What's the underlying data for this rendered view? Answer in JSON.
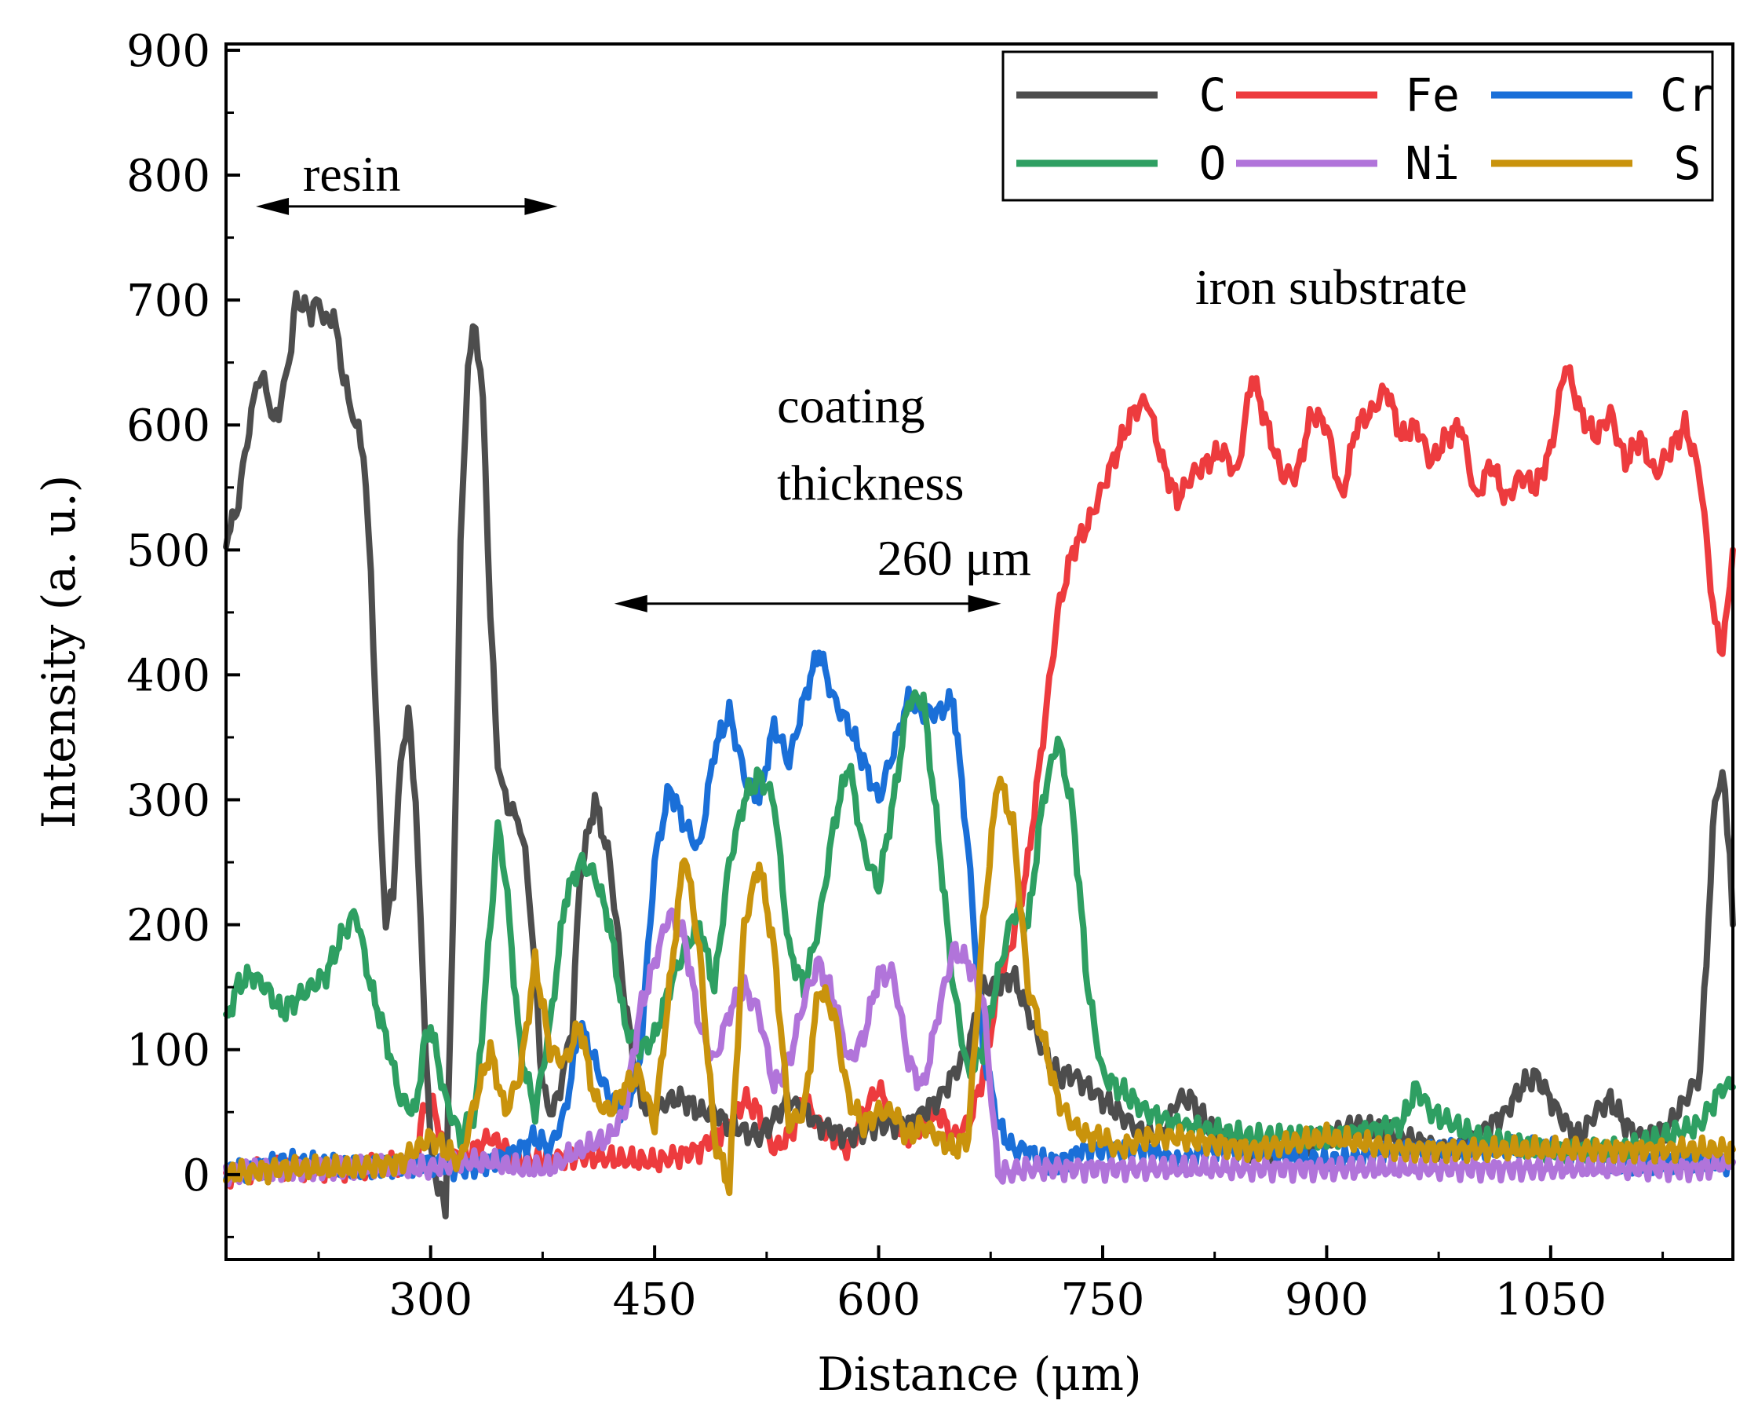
{
  "chart_data": {
    "type": "line",
    "title": "",
    "xlabel": "Distance (μm)",
    "ylabel": "Intensity (a. u.)",
    "xlim": [
      163,
      1172
    ],
    "ylim": [
      -68,
      905
    ],
    "x_ticks": [
      300,
      450,
      600,
      750,
      900,
      1050
    ],
    "x_tick_labels": [
      "300",
      "450",
      "600",
      "750",
      "900",
      "1050"
    ],
    "y_ticks": [
      0,
      100,
      200,
      300,
      400,
      500,
      600,
      700,
      800,
      900
    ],
    "y_tick_labels": [
      "0",
      "100",
      "200",
      "300",
      "400",
      "500",
      "600",
      "700",
      "800",
      "900"
    ],
    "legend_position": "top-right",
    "series": [
      {
        "name": "C",
        "color": "#4d4d4d",
        "x": [
          163,
          170,
          180,
          185,
          190,
          195,
          200,
          205,
          210,
          220,
          225,
          230,
          235,
          240,
          245,
          250,
          255,
          260,
          265,
          270,
          275,
          280,
          285,
          290,
          295,
          300,
          305,
          310,
          315,
          320,
          325,
          330,
          335,
          340,
          342,
          345,
          350,
          355,
          360,
          365,
          370,
          375,
          380,
          385,
          390,
          395,
          400,
          410,
          420,
          430,
          440,
          450,
          460,
          470,
          480,
          490,
          500,
          520,
          540,
          560,
          580,
          600,
          620,
          640,
          660,
          670,
          680,
          690,
          700,
          710,
          720,
          730,
          750,
          760,
          770,
          780,
          790,
          800,
          810,
          820,
          830,
          850,
          880,
          900,
          920,
          950,
          980,
          1000,
          1020,
          1030,
          1040,
          1060,
          1070,
          1080,
          1090,
          1100,
          1110,
          1120,
          1130,
          1140,
          1150,
          1160,
          1165,
          1170,
          1172
        ],
        "y": [
          510,
          530,
          610,
          640,
          630,
          600,
          620,
          650,
          700,
          690,
          700,
          680,
          690,
          650,
          620,
          600,
          580,
          480,
          320,
          200,
          230,
          330,
          370,
          300,
          150,
          20,
          -10,
          -25,
          200,
          500,
          650,
          680,
          620,
          450,
          400,
          330,
          300,
          290,
          280,
          240,
          160,
          70,
          50,
          60,
          90,
          120,
          240,
          300,
          250,
          140,
          60,
          50,
          60,
          60,
          50,
          50,
          40,
          30,
          60,
          40,
          30,
          40,
          40,
          60,
          100,
          150,
          150,
          160,
          130,
          100,
          80,
          80,
          60,
          50,
          40,
          30,
          30,
          60,
          60,
          40,
          30,
          20,
          20,
          30,
          40,
          30,
          20,
          30,
          50,
          70,
          80,
          40,
          30,
          50,
          60,
          40,
          30,
          30,
          40,
          60,
          80,
          300,
          320,
          260,
          200
        ]
      },
      {
        "name": "Fe",
        "color": "#ed3b3e",
        "x": [
          163,
          200,
          250,
          290,
          295,
          300,
          310,
          320,
          330,
          340,
          350,
          360,
          400,
          450,
          480,
          500,
          510,
          520,
          530,
          540,
          550,
          560,
          570,
          580,
          590,
          600,
          610,
          620,
          630,
          640,
          650,
          660,
          670,
          680,
          690,
          700,
          710,
          720,
          730,
          740,
          750,
          760,
          770,
          780,
          790,
          800,
          810,
          820,
          830,
          840,
          850,
          860,
          870,
          880,
          890,
          900,
          910,
          920,
          930,
          940,
          950,
          960,
          970,
          980,
          990,
          1000,
          1010,
          1020,
          1030,
          1040,
          1050,
          1060,
          1070,
          1080,
          1090,
          1100,
          1110,
          1120,
          1130,
          1140,
          1150,
          1160,
          1165,
          1170,
          1172
        ],
        "y": [
          0,
          5,
          5,
          10,
          50,
          60,
          20,
          10,
          20,
          30,
          20,
          10,
          15,
          10,
          20,
          40,
          60,
          50,
          20,
          30,
          60,
          40,
          30,
          20,
          50,
          70,
          40,
          30,
          40,
          50,
          30,
          40,
          80,
          150,
          190,
          250,
          350,
          450,
          500,
          520,
          550,
          580,
          610,
          620,
          570,
          540,
          560,
          570,
          580,
          560,
          640,
          600,
          560,
          560,
          610,
          600,
          540,
          600,
          610,
          630,
          590,
          600,
          570,
          590,
          600,
          540,
          570,
          540,
          560,
          550,
          580,
          650,
          610,
          590,
          610,
          570,
          590,
          560,
          580,
          600,
          560,
          440,
          420,
          470,
          500
        ]
      },
      {
        "name": "Cr",
        "color": "#1a6fd8",
        "x": [
          163,
          200,
          250,
          300,
          320,
          340,
          360,
          370,
          380,
          390,
          400,
          410,
          420,
          430,
          440,
          450,
          460,
          470,
          480,
          490,
          500,
          510,
          520,
          530,
          540,
          550,
          560,
          570,
          580,
          590,
          600,
          610,
          620,
          630,
          640,
          650,
          660,
          670,
          680,
          690,
          700,
          710,
          720,
          740,
          760,
          780,
          800,
          820,
          850,
          900,
          950,
          1000,
          1050,
          1100,
          1150,
          1172
        ],
        "y": [
          0,
          10,
          5,
          10,
          5,
          10,
          20,
          30,
          20,
          50,
          120,
          90,
          60,
          50,
          90,
          250,
          310,
          280,
          260,
          340,
          370,
          320,
          300,
          360,
          330,
          380,
          420,
          380,
          360,
          330,
          300,
          340,
          380,
          370,
          370,
          380,
          260,
          100,
          40,
          20,
          20,
          10,
          10,
          20,
          20,
          20,
          10,
          20,
          20,
          10,
          20,
          20,
          20,
          10,
          10,
          10
        ]
      },
      {
        "name": "O",
        "color": "#2e9f62",
        "x": [
          163,
          170,
          180,
          190,
          200,
          210,
          220,
          230,
          240,
          250,
          260,
          270,
          280,
          290,
          295,
          300,
          310,
          320,
          330,
          340,
          345,
          350,
          360,
          370,
          380,
          390,
          400,
          410,
          420,
          430,
          440,
          450,
          460,
          470,
          480,
          490,
          500,
          510,
          520,
          530,
          540,
          550,
          560,
          570,
          580,
          590,
          600,
          610,
          620,
          630,
          640,
          650,
          660,
          670,
          680,
          690,
          700,
          710,
          720,
          730,
          740,
          750,
          760,
          770,
          780,
          800,
          850,
          900,
          950,
          960,
          970,
          1000,
          1050,
          1100,
          1150,
          1165,
          1172
        ],
        "y": [
          120,
          150,
          160,
          150,
          130,
          140,
          150,
          160,
          190,
          210,
          150,
          110,
          60,
          50,
          100,
          120,
          60,
          30,
          50,
          200,
          280,
          240,
          100,
          50,
          120,
          220,
          250,
          240,
          200,
          120,
          100,
          110,
          150,
          180,
          200,
          150,
          250,
          300,
          320,
          300,
          180,
          150,
          200,
          280,
          330,
          260,
          230,
          300,
          380,
          380,
          270,
          150,
          80,
          100,
          160,
          210,
          200,
          300,
          350,
          290,
          150,
          80,
          70,
          60,
          50,
          40,
          30,
          30,
          40,
          70,
          50,
          30,
          20,
          20,
          40,
          70,
          70
        ]
      },
      {
        "name": "Ni",
        "color": "#b174da",
        "x": [
          163,
          200,
          250,
          300,
          320,
          340,
          360,
          380,
          400,
          420,
          430,
          440,
          450,
          460,
          470,
          480,
          490,
          500,
          510,
          520,
          530,
          540,
          550,
          560,
          570,
          580,
          590,
          600,
          610,
          620,
          630,
          640,
          650,
          660,
          670,
          680,
          700,
          750,
          800,
          850,
          900,
          950,
          1000,
          1050,
          1100,
          1150,
          1172
        ],
        "y": [
          0,
          5,
          5,
          5,
          10,
          10,
          5,
          5,
          20,
          30,
          50,
          130,
          170,
          210,
          190,
          120,
          90,
          130,
          150,
          130,
          70,
          90,
          140,
          170,
          140,
          90,
          110,
          160,
          160,
          90,
          70,
          130,
          180,
          170,
          140,
          0,
          5,
          5,
          5,
          5,
          5,
          5,
          5,
          5,
          5,
          5,
          10
        ]
      },
      {
        "name": "S",
        "color": "#c9930c",
        "x": [
          163,
          200,
          250,
          280,
          290,
          300,
          310,
          320,
          330,
          340,
          350,
          360,
          370,
          380,
          390,
          400,
          410,
          420,
          430,
          440,
          450,
          460,
          470,
          480,
          490,
          500,
          510,
          520,
          530,
          540,
          550,
          560,
          570,
          580,
          590,
          600,
          610,
          620,
          630,
          640,
          650,
          660,
          670,
          680,
          690,
          700,
          710,
          720,
          730,
          740,
          750,
          760,
          780,
          800,
          850,
          900,
          950,
          1000,
          1050,
          1100,
          1150,
          1172
        ],
        "y": [
          0,
          5,
          5,
          10,
          20,
          30,
          20,
          10,
          60,
          100,
          50,
          80,
          170,
          100,
          90,
          120,
          60,
          50,
          70,
          80,
          40,
          150,
          260,
          180,
          30,
          -10,
          200,
          250,
          180,
          40,
          50,
          150,
          130,
          60,
          40,
          50,
          50,
          30,
          40,
          30,
          20,
          30,
          200,
          320,
          280,
          150,
          110,
          60,
          40,
          30,
          30,
          20,
          30,
          30,
          20,
          30,
          20,
          20,
          20,
          20,
          20,
          20
        ]
      }
    ],
    "annotations": [
      {
        "text": "resin",
        "arrow_x_range": [
          183,
          385
        ],
        "arrow_y": 775
      },
      {
        "text": "coating",
        "x": 532,
        "y": 602
      },
      {
        "text": "thickness",
        "x": 532,
        "y": 540
      },
      {
        "text": "260  μm",
        "x": 599,
        "y": 480
      },
      {
        "text": "",
        "arrow_x_range": [
          423,
          682
        ],
        "arrow_y": 457
      },
      {
        "text": "iron substrate",
        "x": 812,
        "y": 697
      }
    ]
  }
}
